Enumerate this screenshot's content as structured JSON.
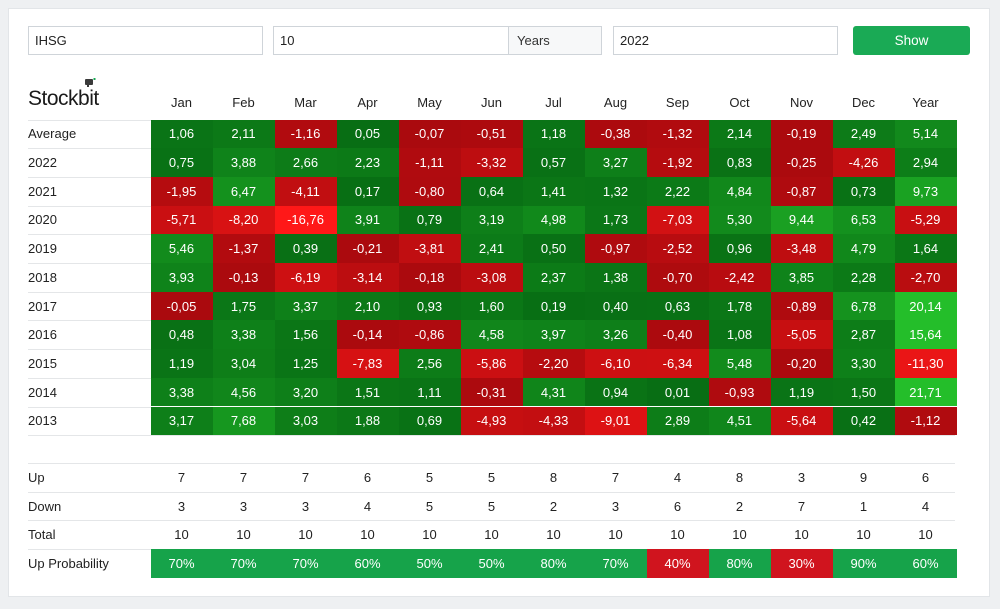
{
  "controls": {
    "symbol_value": "IHSG",
    "period_value": "10",
    "period_unit": "Years",
    "year_value": "2022",
    "show_label": "Show"
  },
  "brand": {
    "logo_text": "Stockbit"
  },
  "colors": {
    "positive": "#1aaa55",
    "negative": "#d0141e",
    "button": "#1aaa55"
  },
  "chart_data": {
    "type": "heatmap",
    "columns": [
      "Jan",
      "Feb",
      "Mar",
      "Apr",
      "May",
      "Jun",
      "Jul",
      "Aug",
      "Sep",
      "Oct",
      "Nov",
      "Dec",
      "Year"
    ],
    "rows": [
      {
        "label": "Average",
        "values": [
          "1,06",
          "2,11",
          "-1,16",
          "0,05",
          "-0,07",
          "-0,51",
          "1,18",
          "-0,38",
          "-1,32",
          "2,14",
          "-0,19",
          "2,49",
          "5,14"
        ]
      },
      {
        "label": "2022",
        "values": [
          "0,75",
          "3,88",
          "2,66",
          "2,23",
          "-1,11",
          "-3,32",
          "0,57",
          "3,27",
          "-1,92",
          "0,83",
          "-0,25",
          "-4,26",
          "2,94"
        ]
      },
      {
        "label": "2021",
        "values": [
          "-1,95",
          "6,47",
          "-4,11",
          "0,17",
          "-0,80",
          "0,64",
          "1,41",
          "1,32",
          "2,22",
          "4,84",
          "-0,87",
          "0,73",
          "9,73"
        ]
      },
      {
        "label": "2020",
        "values": [
          "-5,71",
          "-8,20",
          "-16,76",
          "3,91",
          "0,79",
          "3,19",
          "4,98",
          "1,73",
          "-7,03",
          "5,30",
          "9,44",
          "6,53",
          "-5,29"
        ]
      },
      {
        "label": "2019",
        "values": [
          "5,46",
          "-1,37",
          "0,39",
          "-0,21",
          "-3,81",
          "2,41",
          "0,50",
          "-0,97",
          "-2,52",
          "0,96",
          "-3,48",
          "4,79",
          "1,64"
        ]
      },
      {
        "label": "2018",
        "values": [
          "3,93",
          "-0,13",
          "-6,19",
          "-3,14",
          "-0,18",
          "-3,08",
          "2,37",
          "1,38",
          "-0,70",
          "-2,42",
          "3,85",
          "2,28",
          "-2,70"
        ]
      },
      {
        "label": "2017",
        "values": [
          "-0,05",
          "1,75",
          "3,37",
          "2,10",
          "0,93",
          "1,60",
          "0,19",
          "0,40",
          "0,63",
          "1,78",
          "-0,89",
          "6,78",
          "20,14"
        ]
      },
      {
        "label": "2016",
        "values": [
          "0,48",
          "3,38",
          "1,56",
          "-0,14",
          "-0,86",
          "4,58",
          "3,97",
          "3,26",
          "-0,40",
          "1,08",
          "-5,05",
          "2,87",
          "15,64"
        ]
      },
      {
        "label": "2015",
        "values": [
          "1,19",
          "3,04",
          "1,25",
          "-7,83",
          "2,56",
          "-5,86",
          "-2,20",
          "-6,10",
          "-6,34",
          "5,48",
          "-0,20",
          "3,30",
          "-11,30"
        ]
      },
      {
        "label": "2014",
        "values": [
          "3,38",
          "4,56",
          "3,20",
          "1,51",
          "1,11",
          "-0,31",
          "4,31",
          "0,94",
          "0,01",
          "-0,93",
          "1,19",
          "1,50",
          "21,71"
        ]
      },
      {
        "label": "2013",
        "values": [
          "3,17",
          "7,68",
          "3,03",
          "1,88",
          "0,69",
          "-4,93",
          "-4,33",
          "-9,01",
          "2,89",
          "4,51",
          "-5,64",
          "0,42",
          "-1,12"
        ]
      }
    ],
    "stats": [
      {
        "label": "Up",
        "values": [
          "7",
          "7",
          "7",
          "6",
          "5",
          "5",
          "8",
          "7",
          "4",
          "8",
          "3",
          "9",
          "6"
        ]
      },
      {
        "label": "Down",
        "values": [
          "3",
          "3",
          "3",
          "4",
          "5",
          "5",
          "2",
          "3",
          "6",
          "2",
          "7",
          "1",
          "4"
        ]
      },
      {
        "label": "Total",
        "values": [
          "10",
          "10",
          "10",
          "10",
          "10",
          "10",
          "10",
          "10",
          "10",
          "10",
          "10",
          "10",
          "10"
        ]
      }
    ],
    "probability": {
      "label": "Up Probability",
      "values": [
        "70%",
        "70%",
        "70%",
        "60%",
        "50%",
        "50%",
        "80%",
        "70%",
        "40%",
        "80%",
        "30%",
        "90%",
        "60%"
      ]
    }
  }
}
